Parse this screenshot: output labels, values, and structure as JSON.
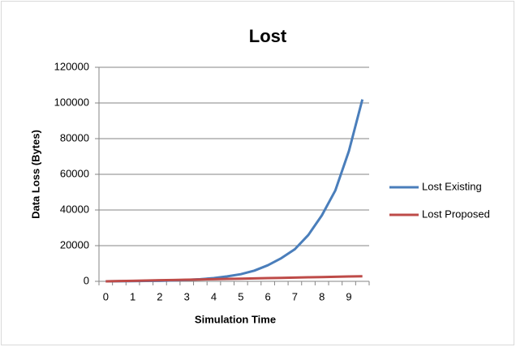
{
  "chart_data": {
    "type": "line",
    "title": "Lost",
    "xlabel": "Simulation Time",
    "ylabel": "Data Loss (Bytes)",
    "categories": [
      "0",
      null,
      "1",
      null,
      "2",
      null,
      "3",
      null,
      "4",
      null,
      "5",
      null,
      "6",
      null,
      "7",
      null,
      "8",
      null,
      "9",
      null
    ],
    "series": [
      {
        "name": "Lost Existing",
        "color": "#4a7ebb",
        "values": [
          0,
          50,
          100,
          200,
          300,
          500,
          800,
          1200,
          1800,
          2800,
          4000,
          6000,
          9000,
          13000,
          18000,
          26000,
          37000,
          51000,
          73000,
          102000
        ]
      },
      {
        "name": "Lost Proposed",
        "color": "#be4b48",
        "values": [
          0,
          150,
          300,
          450,
          600,
          750,
          900,
          1050,
          1200,
          1350,
          1500,
          1650,
          1800,
          1950,
          2100,
          2250,
          2400,
          2550,
          2700,
          2850
        ]
      }
    ],
    "ylim": [
      0,
      120000
    ],
    "yticks": [
      0,
      20000,
      40000,
      60000,
      80000,
      100000,
      120000
    ],
    "grid": true,
    "legend": "right"
  }
}
